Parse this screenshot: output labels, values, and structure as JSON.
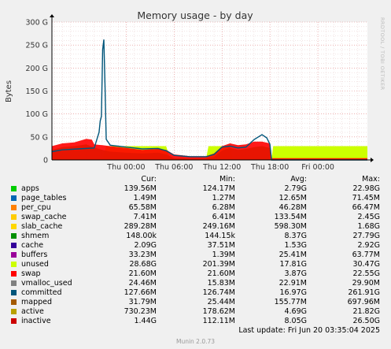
{
  "title": "Memory usage - by day",
  "side_text": "RRDTOOL / TOBI OETIKER",
  "footer": {
    "last_update": "Last update: Fri Jun 20 03:35:04 2025",
    "munin": "Munin 2.0.73"
  },
  "legend_headers": {
    "cur": "Cur:",
    "min": "Min:",
    "avg": "Avg:",
    "max": "Max:"
  },
  "legend": [
    {
      "name": "apps",
      "color": "#00cc00",
      "cur": "139.56M",
      "min": "124.17M",
      "avg": "2.79G",
      "max": "22.98G"
    },
    {
      "name": "page_tables",
      "color": "#0066b3",
      "cur": "1.49M",
      "min": "1.27M",
      "avg": "12.65M",
      "max": "71.45M"
    },
    {
      "name": "per_cpu",
      "color": "#ff8000",
      "cur": "65.58M",
      "min": "6.28M",
      "avg": "46.28M",
      "max": "66.47M"
    },
    {
      "name": "swap_cache",
      "color": "#ffcc00",
      "cur": "7.41M",
      "min": "6.41M",
      "avg": "133.54M",
      "max": "2.45G"
    },
    {
      "name": "slab_cache",
      "color": "#ffd700",
      "cur": "289.28M",
      "min": "249.16M",
      "avg": "598.30M",
      "max": "1.68G"
    },
    {
      "name": "shmem",
      "color": "#008f00",
      "cur": "148.00k",
      "min": "144.15k",
      "avg": "8.37G",
      "max": "27.79G"
    },
    {
      "name": "cache",
      "color": "#330099",
      "cur": "2.09G",
      "min": "37.51M",
      "avg": "1.53G",
      "max": "2.92G"
    },
    {
      "name": "buffers",
      "color": "#990099",
      "cur": "33.23M",
      "min": "1.39M",
      "avg": "25.41M",
      "max": "63.77M"
    },
    {
      "name": "unused",
      "color": "#ccff00",
      "cur": "28.68G",
      "min": "201.39M",
      "avg": "17.81G",
      "max": "30.47G"
    },
    {
      "name": "swap",
      "color": "#ff0000",
      "cur": "21.60M",
      "min": "21.60M",
      "avg": "3.87G",
      "max": "22.55G"
    },
    {
      "name": "vmalloc_used",
      "color": "#808080",
      "cur": "24.46M",
      "min": "15.83M",
      "avg": "22.91M",
      "max": "29.90M"
    },
    {
      "name": "committed",
      "color": "#00557a",
      "cur": "127.66M",
      "min": "126.74M",
      "avg": "16.97G",
      "max": "261.91G"
    },
    {
      "name": "mapped",
      "color": "#a35a00",
      "cur": "31.79M",
      "min": "25.44M",
      "avg": "155.77M",
      "max": "697.96M"
    },
    {
      "name": "active",
      "color": "#b8a000",
      "cur": "730.23M",
      "min": "178.62M",
      "avg": "4.69G",
      "max": "21.82G"
    },
    {
      "name": "inactive",
      "color": "#cc0000",
      "cur": "1.44G",
      "min": "112.11M",
      "avg": "8.05G",
      "max": "26.50G"
    }
  ],
  "chart_data": {
    "type": "area",
    "title": "Memory usage - by day",
    "ylabel": "Bytes",
    "ylim": [
      0,
      300
    ],
    "y_unit": "G",
    "yticks": [
      {
        "value": 0,
        "label": "0"
      },
      {
        "value": 50,
        "label": "50 G"
      },
      {
        "value": 100,
        "label": "100 G"
      },
      {
        "value": 150,
        "label": "150 G"
      },
      {
        "value": 200,
        "label": "200 G"
      },
      {
        "value": 250,
        "label": "250 G"
      },
      {
        "value": 300,
        "label": "300 G"
      }
    ],
    "xlim_hours": [
      -9.3,
      30.2
    ],
    "xticks": [
      {
        "hour": 0,
        "label": "Thu 00:00"
      },
      {
        "hour": 6,
        "label": "Thu 06:00"
      },
      {
        "hour": 12,
        "label": "Thu 12:00"
      },
      {
        "hour": 18,
        "label": "Thu 18:00"
      },
      {
        "hour": 24,
        "label": "Fri 00:00"
      }
    ],
    "grid": true,
    "series": [
      {
        "name": "unused",
        "color": "#ccff00",
        "points": [
          [
            -9.3,
            2
          ],
          [
            -3,
            2
          ],
          [
            -2.5,
            30
          ],
          [
            5,
            30
          ],
          [
            5.5,
            2
          ],
          [
            10,
            2
          ],
          [
            10.3,
            30
          ],
          [
            13,
            30
          ],
          [
            13.3,
            2
          ],
          [
            18.2,
            2
          ],
          [
            18.4,
            30
          ],
          [
            30.2,
            30
          ]
        ]
      },
      {
        "name": "apps",
        "color": "#00cc00",
        "points": [
          [
            -9.3,
            22
          ],
          [
            -8,
            28
          ],
          [
            -6.5,
            30
          ],
          [
            -5,
            34
          ],
          [
            -4,
            27
          ],
          [
            -3,
            22
          ],
          [
            -2,
            18
          ],
          [
            0,
            16
          ],
          [
            2,
            14
          ],
          [
            4,
            16
          ],
          [
            5,
            12
          ],
          [
            6,
            4
          ],
          [
            8,
            3
          ],
          [
            10,
            3
          ],
          [
            11,
            6
          ],
          [
            12,
            20
          ],
          [
            13,
            26
          ],
          [
            14,
            22
          ],
          [
            15,
            24
          ],
          [
            16,
            28
          ],
          [
            17,
            30
          ],
          [
            18,
            26
          ],
          [
            18.2,
            2
          ],
          [
            30.2,
            0
          ]
        ]
      },
      {
        "name": "swap",
        "color": "#ff0000",
        "points": [
          [
            -9.3,
            30
          ],
          [
            -8,
            36
          ],
          [
            -6.5,
            38
          ],
          [
            -5,
            46
          ],
          [
            -4.3,
            44
          ],
          [
            -4,
            34
          ],
          [
            -3,
            32
          ],
          [
            -2,
            30
          ],
          [
            0,
            26
          ],
          [
            2,
            22
          ],
          [
            4,
            24
          ],
          [
            5,
            22
          ],
          [
            6,
            12
          ],
          [
            8,
            8
          ],
          [
            10,
            8
          ],
          [
            11,
            14
          ],
          [
            12,
            30
          ],
          [
            13,
            36
          ],
          [
            14,
            32
          ],
          [
            15,
            34
          ],
          [
            16,
            40
          ],
          [
            17,
            40
          ],
          [
            18,
            36
          ],
          [
            18.2,
            4
          ],
          [
            30.2,
            4
          ]
        ]
      },
      {
        "name": "committed",
        "color": "#00557a",
        "points": [
          [
            -9.3,
            18
          ],
          [
            -8,
            22
          ],
          [
            -6,
            24
          ],
          [
            -4,
            26
          ],
          [
            -3.4,
            60
          ],
          [
            -3.25,
            85
          ],
          [
            -3.1,
            95
          ],
          [
            -2.95,
            240
          ],
          [
            -2.8,
            262
          ],
          [
            -2.65,
            160
          ],
          [
            -2.5,
            45
          ],
          [
            -2,
            32
          ],
          [
            0,
            28
          ],
          [
            2,
            24
          ],
          [
            4,
            25
          ],
          [
            5,
            20
          ],
          [
            6,
            10
          ],
          [
            8,
            7
          ],
          [
            10,
            7
          ],
          [
            11,
            12
          ],
          [
            12,
            28
          ],
          [
            13,
            30
          ],
          [
            14,
            26
          ],
          [
            15,
            28
          ],
          [
            16,
            44
          ],
          [
            17,
            55
          ],
          [
            17.6,
            48
          ],
          [
            18,
            34
          ],
          [
            18.2,
            0
          ],
          [
            30.2,
            0
          ]
        ]
      }
    ]
  }
}
